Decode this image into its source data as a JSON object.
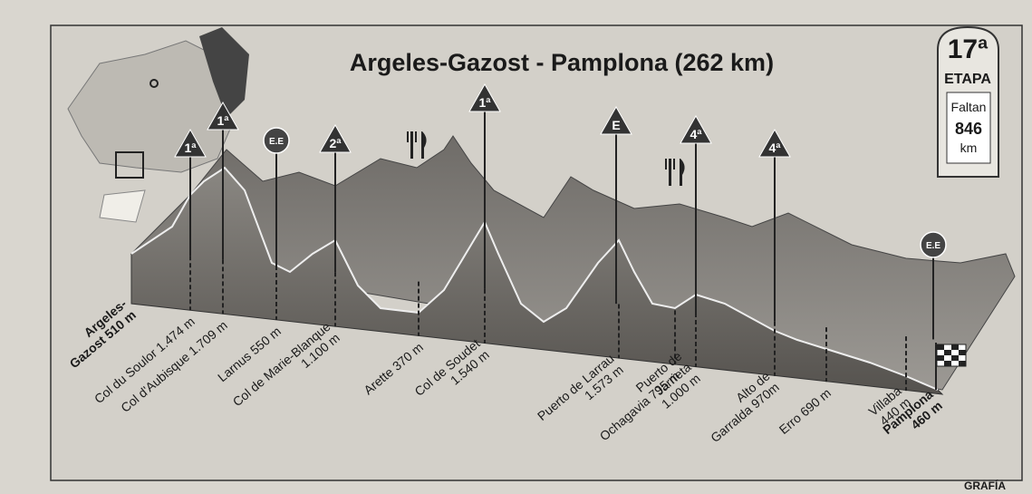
{
  "title": "Argeles-Gazost - Pamplona (262 km)",
  "stage": {
    "number": "17ª",
    "label": "ETAPA",
    "remaining_label": "Faltan",
    "remaining_value": "846",
    "unit": "km"
  },
  "markers": [
    "1ª",
    "1ª",
    "E.E",
    "2ª",
    "1ª",
    "E",
    "4ª",
    "4ª",
    "E.E"
  ],
  "places": [
    {
      "lines": [
        "Argeles-",
        "Gazost 510 m"
      ]
    },
    {
      "lines": [
        "Col du Soulor 1.474 m"
      ]
    },
    {
      "lines": [
        "Col d'Aubisque 1.709 m"
      ]
    },
    {
      "lines": [
        "Larnus 550 m"
      ]
    },
    {
      "lines": [
        "Col de Marie-Blanque",
        "1.100 m"
      ]
    },
    {
      "lines": [
        "Arette 370 m"
      ]
    },
    {
      "lines": [
        "Col de Soudet",
        "1.540 m"
      ]
    },
    {
      "lines": [
        "Puerto de Larrau",
        "1.573 m"
      ]
    },
    {
      "lines": [
        "Ochagavia 795 m"
      ]
    },
    {
      "lines": [
        "Puerto de",
        "Jarrieta",
        "1.000 m"
      ]
    },
    {
      "lines": [
        "Alto de",
        "Garralda 970m"
      ]
    },
    {
      "lines": [
        "Erro 690 m"
      ]
    },
    {
      "lines": [
        "Villaba",
        "440 m"
      ]
    },
    {
      "lines": [
        "Pamplona",
        "460 m"
      ]
    }
  ],
  "credit": "GRAFÍA"
}
